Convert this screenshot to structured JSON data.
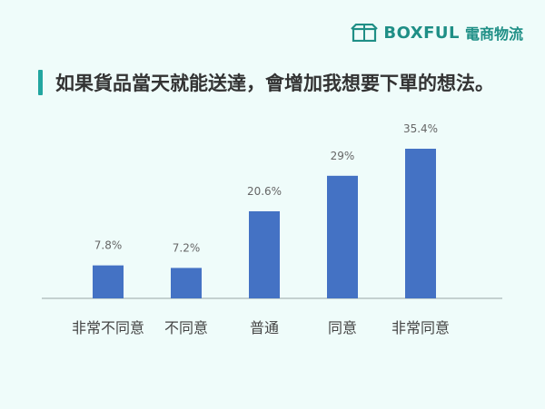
{
  "logo": {
    "name": "BOXFUL",
    "sub": "電商物流"
  },
  "title": "如果貨品當天就能送達，會增加我想要下單的想法。",
  "colors": {
    "bar": "#4472c4",
    "accent": "#22a6a0",
    "background": "#effcfa"
  },
  "chart_data": {
    "type": "bar",
    "title": "如果貨品當天就能送達，會增加我想要下單的想法。",
    "categories": [
      "非常不同意",
      "不同意",
      "普通",
      "同意",
      "非常同意"
    ],
    "values": [
      7.8,
      7.2,
      20.6,
      29,
      35.4
    ],
    "data_labels": [
      "7.8%",
      "7.2%",
      "20.6%",
      "29%",
      "35.4%"
    ],
    "xlabel": "",
    "ylabel": "",
    "ylim": [
      0,
      37
    ],
    "grid": false,
    "legend": "none"
  }
}
